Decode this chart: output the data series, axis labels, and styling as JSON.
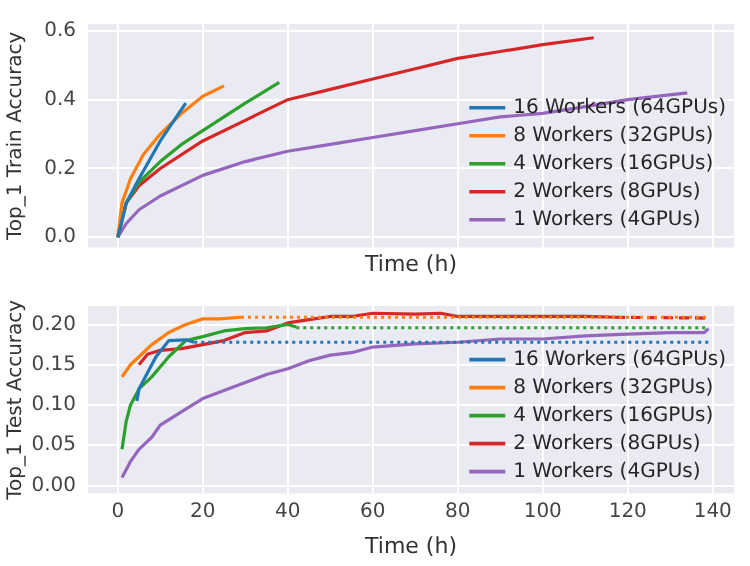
{
  "chart_data": [
    {
      "type": "line",
      "xlabel": "Time (h)",
      "ylabel": "Top_1 Train Accuracy",
      "xlim": [
        -7,
        145
      ],
      "ylim": [
        -0.03,
        0.62
      ],
      "xticks": [
        0,
        20,
        40,
        60,
        80,
        100,
        120,
        140
      ],
      "yticks": [
        {
          "value": 0,
          "label": "0.0"
        },
        {
          "value": 0.2,
          "label": "0.2"
        },
        {
          "value": 0.4,
          "label": "0.4"
        },
        {
          "value": 0.6,
          "label": "0.6"
        }
      ],
      "tick_labels": "y",
      "grid": true,
      "legend": "right",
      "marker": "none",
      "line_style": "solid",
      "series": [
        {
          "name": "16 Workers (64GPUs)",
          "color": "#1f77b4",
          "x": [
            0,
            2,
            5,
            10,
            16
          ],
          "values": [
            0,
            0.1,
            0.17,
            0.28,
            0.39
          ]
        },
        {
          "name": "8 Workers (32GPUs)",
          "color": "#ff7f0e",
          "x": [
            0,
            1,
            3,
            6,
            10,
            15,
            20,
            25
          ],
          "values": [
            0,
            0.1,
            0.17,
            0.24,
            0.3,
            0.36,
            0.41,
            0.44
          ]
        },
        {
          "name": "4 Workers (16GPUs)",
          "color": "#2ca02c",
          "x": [
            0,
            2,
            5,
            10,
            15,
            20,
            25,
            30,
            38
          ],
          "values": [
            0,
            0.1,
            0.16,
            0.22,
            0.27,
            0.31,
            0.35,
            0.39,
            0.45
          ]
        },
        {
          "name": "2 Workers (8GPUs)",
          "color": "#d62728",
          "x": [
            0,
            2,
            5,
            10,
            20,
            30,
            40,
            50,
            60,
            70,
            80,
            90,
            100,
            112
          ],
          "values": [
            0,
            0.1,
            0.15,
            0.2,
            0.28,
            0.34,
            0.4,
            0.43,
            0.46,
            0.49,
            0.52,
            0.54,
            0.56,
            0.58
          ]
        },
        {
          "name": "1 Workers (4GPUs)",
          "color": "#9467bd",
          "x": [
            0,
            2,
            5,
            10,
            20,
            30,
            40,
            50,
            60,
            70,
            80,
            90,
            100,
            110,
            120,
            134
          ],
          "values": [
            0,
            0.04,
            0.08,
            0.12,
            0.18,
            0.22,
            0.25,
            0.27,
            0.29,
            0.31,
            0.33,
            0.35,
            0.36,
            0.38,
            0.4,
            0.42
          ]
        }
      ]
    },
    {
      "type": "line",
      "xlabel": "Time (h)",
      "ylabel": "Top_1 Test Accuracy",
      "xlim": [
        -7,
        145
      ],
      "ylim": [
        -0.01,
        0.223
      ],
      "xticks": [
        0,
        20,
        40,
        60,
        80,
        100,
        120,
        140
      ],
      "yticks": [
        {
          "value": 0,
          "label": "0.00"
        },
        {
          "value": 0.05,
          "label": "0.05"
        },
        {
          "value": 0.1,
          "label": "0.10"
        },
        {
          "value": 0.15,
          "label": "0.15"
        },
        {
          "value": 0.2,
          "label": "0.20"
        }
      ],
      "grid": true,
      "legend": "bottom right",
      "marker": "none",
      "line_style": "solid",
      "series": [
        {
          "name": "16 Workers (64GPUs)",
          "color": "#1f77b4",
          "x": [
            4.5,
            5,
            7,
            9,
            12,
            16,
            18
          ],
          "values": [
            0.105,
            0.12,
            0.14,
            0.16,
            0.18,
            0.181,
            0.178
          ]
        },
        {
          "color": "#1f77b4",
          "line_style": "dotted",
          "x": [
            18,
            139
          ],
          "values": [
            0.178,
            0.178
          ]
        },
        {
          "name": "8 Workers (32GPUs)",
          "color": "#ff7f0e",
          "x": [
            1,
            3,
            5,
            8,
            12,
            16,
            20,
            24,
            29
          ],
          "values": [
            0.135,
            0.15,
            0.16,
            0.175,
            0.19,
            0.2,
            0.207,
            0.207,
            0.209
          ]
        },
        {
          "color": "#ff7f0e",
          "line_style": "dotted",
          "x": [
            29,
            139
          ],
          "values": [
            0.209,
            0.209
          ]
        },
        {
          "name": "4 Workers (16GPUs)",
          "color": "#2ca02c",
          "x": [
            1,
            2,
            3,
            5,
            8,
            12,
            16,
            20,
            25,
            30,
            35,
            40,
            42
          ],
          "values": [
            0.045,
            0.08,
            0.1,
            0.12,
            0.135,
            0.16,
            0.18,
            0.185,
            0.192,
            0.195,
            0.196,
            0.2,
            0.197
          ]
        },
        {
          "color": "#2ca02c",
          "line_style": "dotted",
          "x": [
            42,
            139
          ],
          "values": [
            0.196,
            0.196
          ]
        },
        {
          "name": "2 Workers (8GPUs)",
          "color": "#d62728",
          "x": [
            5,
            7,
            10,
            15,
            20,
            25,
            30,
            35,
            40,
            45,
            50,
            55,
            60,
            70,
            76,
            80,
            90,
            100,
            110,
            117
          ],
          "values": [
            0.15,
            0.163,
            0.168,
            0.17,
            0.175,
            0.18,
            0.19,
            0.192,
            0.202,
            0.206,
            0.21,
            0.21,
            0.214,
            0.213,
            0.214,
            0.21,
            0.21,
            0.21,
            0.21,
            0.209
          ]
        },
        {
          "color": "#d62728",
          "line_style": "dashed",
          "x": [
            117,
            139
          ],
          "values": [
            0.209,
            0.208
          ]
        },
        {
          "name": "1 Workers (4GPUs)",
          "color": "#9467bd",
          "x": [
            1,
            3,
            5,
            8,
            10,
            13,
            16,
            20,
            25,
            30,
            35,
            40,
            45,
            50,
            55,
            60,
            70,
            80,
            90,
            100,
            110,
            120,
            130,
            138,
            139
          ],
          "values": [
            0.01,
            0.03,
            0.045,
            0.06,
            0.075,
            0.085,
            0.095,
            0.108,
            0.118,
            0.128,
            0.138,
            0.145,
            0.155,
            0.162,
            0.165,
            0.172,
            0.176,
            0.178,
            0.182,
            0.182,
            0.186,
            0.188,
            0.19,
            0.19,
            0.195
          ]
        }
      ]
    }
  ]
}
